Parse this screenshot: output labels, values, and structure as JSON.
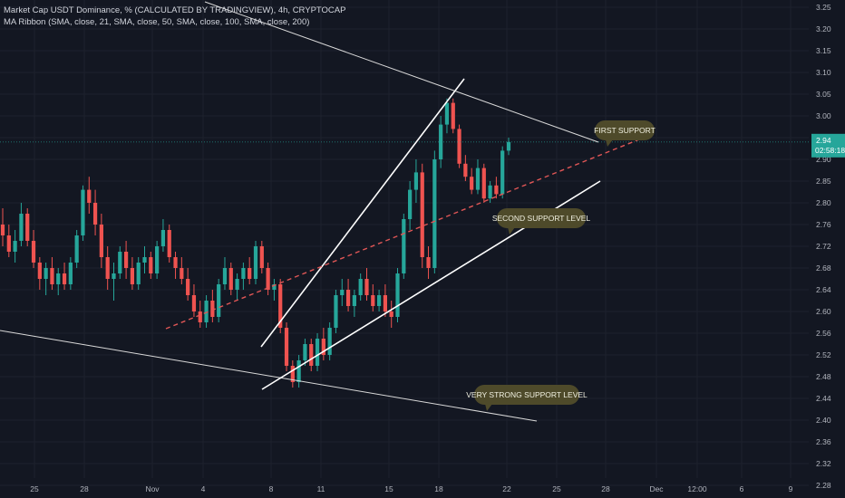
{
  "legend": {
    "line1": "Market Cap USDT Dominance, % (CALCULATED BY TRADINGVIEW), 4h, CRYPTOCAP",
    "line2": "MA Ribbon (SMA, close, 21, SMA, close, 50, SMA, close, 100, SMA, close, 200)"
  },
  "price_tag": {
    "value": "2.94",
    "countdown": "02:58:18"
  },
  "chart_data": {
    "type": "candlestick",
    "title": "Market Cap USDT Dominance, % (CALCULATED BY TRADINGVIEW), 4h, CRYPTOCAP",
    "y_ticks": [
      "3.25",
      "3.20",
      "3.15",
      "3.10",
      "3.05",
      "3.00",
      "2.95",
      "2.90",
      "2.85",
      "2.80",
      "2.76",
      "2.72",
      "2.68",
      "2.64",
      "2.60",
      "2.56",
      "2.52",
      "2.48",
      "2.44",
      "2.40",
      "2.36",
      "2.32",
      "2.28"
    ],
    "x_ticks": [
      "25",
      "28",
      "Nov",
      "4",
      "8",
      "11",
      "15",
      "18",
      "22",
      "25",
      "28",
      "Dec",
      "12:00",
      "6",
      "9"
    ],
    "ylim": [
      2.25,
      3.27
    ],
    "current_price": 2.94,
    "colors": {
      "up": "#26a69a",
      "down": "#ef5350",
      "background": "#131722",
      "text": "#b2b5be",
      "callout": "#4e4a2a",
      "dashed": "#e05656"
    },
    "annotations": [
      "FIRST SUPPORT",
      "SECOND SUPPORT LEVEL",
      "VERY STRONG SUPPORT LEVEL"
    ],
    "ohlc_approx": [
      [
        2.76,
        2.79,
        2.72,
        2.74
      ],
      [
        2.74,
        2.76,
        2.7,
        2.71
      ],
      [
        2.71,
        2.75,
        2.69,
        2.73
      ],
      [
        2.73,
        2.8,
        2.72,
        2.78
      ],
      [
        2.78,
        2.79,
        2.72,
        2.73
      ],
      [
        2.73,
        2.75,
        2.68,
        2.69
      ],
      [
        2.69,
        2.7,
        2.64,
        2.66
      ],
      [
        2.66,
        2.69,
        2.63,
        2.68
      ],
      [
        2.68,
        2.7,
        2.64,
        2.65
      ],
      [
        2.65,
        2.68,
        2.63,
        2.67
      ],
      [
        2.67,
        2.69,
        2.64,
        2.65
      ],
      [
        2.65,
        2.7,
        2.64,
        2.69
      ],
      [
        2.69,
        2.75,
        2.68,
        2.74
      ],
      [
        2.74,
        2.84,
        2.73,
        2.83
      ],
      [
        2.83,
        2.86,
        2.78,
        2.8
      ],
      [
        2.8,
        2.83,
        2.74,
        2.76
      ],
      [
        2.76,
        2.78,
        2.68,
        2.7
      ],
      [
        2.7,
        2.72,
        2.64,
        2.66
      ],
      [
        2.66,
        2.69,
        2.62,
        2.67
      ],
      [
        2.67,
        2.72,
        2.66,
        2.71
      ],
      [
        2.71,
        2.73,
        2.66,
        2.68
      ],
      [
        2.68,
        2.7,
        2.64,
        2.65
      ],
      [
        2.65,
        2.7,
        2.64,
        2.69
      ],
      [
        2.69,
        2.72,
        2.67,
        2.7
      ],
      [
        2.7,
        2.71,
        2.66,
        2.67
      ],
      [
        2.67,
        2.73,
        2.66,
        2.72
      ],
      [
        2.72,
        2.77,
        2.71,
        2.75
      ],
      [
        2.75,
        2.76,
        2.69,
        2.7
      ],
      [
        2.7,
        2.71,
        2.66,
        2.68
      ],
      [
        2.68,
        2.7,
        2.65,
        2.66
      ],
      [
        2.66,
        2.68,
        2.62,
        2.63
      ],
      [
        2.63,
        2.65,
        2.59,
        2.6
      ],
      [
        2.6,
        2.62,
        2.57,
        2.58
      ],
      [
        2.58,
        2.63,
        2.57,
        2.62
      ],
      [
        2.62,
        2.64,
        2.58,
        2.59
      ],
      [
        2.59,
        2.66,
        2.58,
        2.65
      ],
      [
        2.65,
        2.7,
        2.64,
        2.68
      ],
      [
        2.68,
        2.69,
        2.63,
        2.64
      ],
      [
        2.64,
        2.67,
        2.62,
        2.66
      ],
      [
        2.66,
        2.69,
        2.64,
        2.68
      ],
      [
        2.68,
        2.7,
        2.65,
        2.66
      ],
      [
        2.66,
        2.73,
        2.65,
        2.72
      ],
      [
        2.72,
        2.73,
        2.67,
        2.68
      ],
      [
        2.68,
        2.69,
        2.63,
        2.64
      ],
      [
        2.64,
        2.66,
        2.62,
        2.65
      ],
      [
        2.65,
        2.66,
        2.56,
        2.57
      ],
      [
        2.57,
        2.58,
        2.49,
        2.5
      ],
      [
        2.5,
        2.51,
        2.46,
        2.47
      ],
      [
        2.47,
        2.52,
        2.46,
        2.51
      ],
      [
        2.51,
        2.55,
        2.5,
        2.54
      ],
      [
        2.54,
        2.55,
        2.49,
        2.5
      ],
      [
        2.5,
        2.56,
        2.49,
        2.55
      ],
      [
        2.55,
        2.57,
        2.51,
        2.52
      ],
      [
        2.52,
        2.58,
        2.51,
        2.57
      ],
      [
        2.57,
        2.64,
        2.56,
        2.63
      ],
      [
        2.63,
        2.66,
        2.61,
        2.64
      ],
      [
        2.64,
        2.66,
        2.6,
        2.61
      ],
      [
        2.61,
        2.64,
        2.59,
        2.63
      ],
      [
        2.63,
        2.67,
        2.62,
        2.66
      ],
      [
        2.66,
        2.68,
        2.62,
        2.63
      ],
      [
        2.63,
        2.65,
        2.6,
        2.61
      ],
      [
        2.61,
        2.64,
        2.6,
        2.63
      ],
      [
        2.63,
        2.65,
        2.59,
        2.6
      ],
      [
        2.6,
        2.62,
        2.57,
        2.59
      ],
      [
        2.59,
        2.68,
        2.58,
        2.67
      ],
      [
        2.67,
        2.78,
        2.66,
        2.77
      ],
      [
        2.77,
        2.85,
        2.75,
        2.83
      ],
      [
        2.83,
        2.9,
        2.8,
        2.87
      ],
      [
        2.87,
        2.89,
        2.68,
        2.7
      ],
      [
        2.7,
        2.72,
        2.66,
        2.68
      ],
      [
        2.68,
        2.92,
        2.67,
        2.9
      ],
      [
        2.9,
        3.0,
        2.88,
        2.98
      ],
      [
        2.98,
        3.04,
        2.96,
        3.03
      ],
      [
        3.03,
        3.04,
        2.96,
        2.97
      ],
      [
        2.97,
        2.98,
        2.88,
        2.89
      ],
      [
        2.89,
        2.91,
        2.85,
        2.86
      ],
      [
        2.86,
        2.88,
        2.82,
        2.83
      ],
      [
        2.83,
        2.9,
        2.82,
        2.88
      ],
      [
        2.88,
        2.89,
        2.8,
        2.81
      ],
      [
        2.81,
        2.85,
        2.8,
        2.84
      ],
      [
        2.84,
        2.86,
        2.81,
        2.82
      ],
      [
        2.82,
        2.93,
        2.81,
        2.92
      ],
      [
        2.92,
        2.95,
        2.91,
        2.94
      ]
    ]
  }
}
